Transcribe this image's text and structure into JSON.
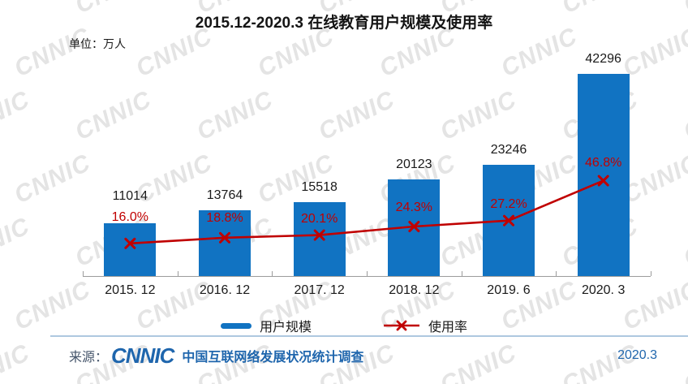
{
  "title": "2015.12-2020.3 在线教育用户规模及使用率",
  "unit_label": "单位：万人",
  "watermark_text": "CNNIC",
  "colors": {
    "bar": "#1173c2",
    "line": "#c00000",
    "axis": "#9c9c9c",
    "value_label": "#1a1a1a",
    "separator": "#aec8e0",
    "footer_source_label": "#44546a",
    "footer_blue": "#1f66ad",
    "watermark": "#e4e4e4"
  },
  "legend": [
    {
      "label": "用户规模",
      "type": "bar"
    },
    {
      "label": "使用率",
      "type": "line"
    }
  ],
  "footer": {
    "source_label": "来源：",
    "logo_text": "CNNIC",
    "source_text": "中国互联网络发展状况统计调查",
    "date": "2020.3"
  },
  "chart_data": {
    "type": "bar+line",
    "title": "2015.12-2020.3 在线教育用户规模及使用率",
    "unit": "万人",
    "categories": [
      "2015. 12",
      "2016. 12",
      "2017. 12",
      "2018. 12",
      "2019. 6",
      "2020. 3"
    ],
    "series": [
      {
        "name": "用户规模",
        "type": "bar",
        "axis": "primary",
        "unit": "万人",
        "values": [
          11014,
          13764,
          15518,
          20123,
          23246,
          42296
        ],
        "labels": [
          "11014",
          "13764",
          "15518",
          "20123",
          "23246",
          "42296"
        ]
      },
      {
        "name": "使用率",
        "type": "line",
        "axis": "secondary",
        "unit": "%",
        "values": [
          16.0,
          18.8,
          20.1,
          24.3,
          27.2,
          46.8
        ],
        "labels": [
          "16.0%",
          "18.8%",
          "20.1%",
          "24.3%",
          "27.2%",
          "46.8%"
        ]
      }
    ],
    "ylim": [
      0,
      45000
    ],
    "y2lim": [
      0,
      100
    ],
    "grid": false,
    "legend_position": "bottom"
  }
}
